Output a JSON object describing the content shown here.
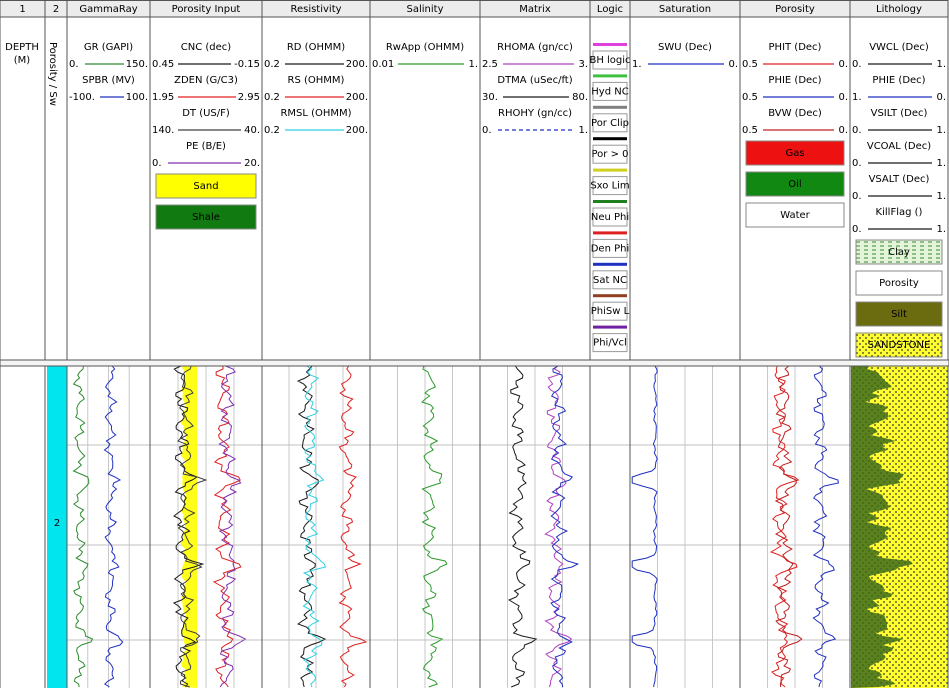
{
  "header_row": [
    "1",
    "2",
    "GammaRay",
    "Porosity Input",
    "Resistivity",
    "Salinity",
    "Matrix",
    "Logic",
    "Saturation",
    "Porosity",
    "Lithology"
  ],
  "depth": {
    "title": "DEPTH",
    "unit": "(M)"
  },
  "track2": {
    "label": "Porosity / Sw",
    "marker": "2"
  },
  "tracks": [
    {
      "curves": [
        {
          "name": "GR (GAPI)",
          "left": "0.",
          "right": "150.",
          "color": "#2e8b2e"
        },
        {
          "name": "SPBR (MV)",
          "left": "-100.",
          "right": "100.",
          "color": "#2030c0"
        }
      ]
    },
    {
      "curves": [
        {
          "name": "CNC (dec)",
          "left": "0.45",
          "right": "-0.15",
          "color": "#1a1a1a"
        },
        {
          "name": "ZDEN (G/C3)",
          "left": "1.95",
          "right": "2.95",
          "color": "#e02020"
        },
        {
          "name": "DT (US/F)",
          "left": "140.",
          "right": "40.",
          "color": "#404040"
        },
        {
          "name": "PE (B/E)",
          "left": "0.",
          "right": "20.",
          "color": "#8030b0"
        }
      ],
      "legend": [
        {
          "label": "Sand",
          "color": "#ffff00",
          "text": "#000000"
        },
        {
          "label": "Shale",
          "color": "#117a11",
          "text": "#ffffff"
        }
      ]
    },
    {
      "curves": [
        {
          "name": "RD (OHMM)",
          "left": "0.2",
          "right": "200.",
          "color": "#1a1a1a"
        },
        {
          "name": "RS (OHMM)",
          "left": "0.2",
          "right": "200.",
          "color": "#e02020"
        },
        {
          "name": "RMSL (OHMM)",
          "left": "0.2",
          "right": "200.",
          "color": "#30d0e0"
        }
      ]
    },
    {
      "curves": [
        {
          "name": "RwApp (OHMM)",
          "left": "0.01",
          "right": "1.",
          "color": "#2e9b2e"
        }
      ]
    },
    {
      "curves": [
        {
          "name": "RHOMA (gn/cc)",
          "left": "2.5",
          "right": "3.",
          "color": "#b040c0"
        },
        {
          "name": "DTMA (uSec/ft)",
          "left": "30.",
          "right": "80.",
          "color": "#1a1a1a"
        },
        {
          "name": "RHOHY (gn/cc)",
          "left": "0.",
          "right": "1.",
          "color": "#2030c0"
        }
      ]
    },
    {
      "logic": [
        {
          "label": "BH logic",
          "color": "#e040e0"
        },
        {
          "label": "Hyd NC",
          "color": "#40c040"
        },
        {
          "label": "Por Clip",
          "color": "#808080"
        },
        {
          "label": "Por > 0",
          "color": "#000000"
        },
        {
          "label": "Sxo Lim",
          "color": "#d0d020"
        },
        {
          "label": "Neu Phi",
          "color": "#208020"
        },
        {
          "label": "Den Phi",
          "color": "#e02020"
        },
        {
          "label": "Sat NC",
          "color": "#2030c0"
        },
        {
          "label": "PhiSw L",
          "color": "#904020"
        },
        {
          "label": "Phi/Vcl",
          "color": "#7020a0"
        }
      ]
    },
    {
      "curves": [
        {
          "name": "SWU (Dec)",
          "left": "1.",
          "right": "0.",
          "color": "#2030c0"
        }
      ]
    },
    {
      "curves": [
        {
          "name": "PHIT (Dec)",
          "left": "0.5",
          "right": "0.",
          "color": "#e02020"
        },
        {
          "name": "PHIE (Dec)",
          "left": "0.5",
          "right": "0.",
          "color": "#2030c0"
        },
        {
          "name": "BVW (Dec)",
          "left": "0.5",
          "right": "0.",
          "color": "#c02020"
        }
      ],
      "legend": [
        {
          "label": "Gas",
          "color": "#ee1111",
          "text": "#ffffff"
        },
        {
          "label": "Oil",
          "color": "#118811",
          "text": "#ffffff"
        },
        {
          "label": "Water",
          "color": "#ffffff",
          "text": "#000000"
        }
      ]
    },
    {
      "curves": [
        {
          "name": "VWCL (Dec)",
          "left": "0.",
          "right": "1.",
          "color": "#1a1a1a"
        },
        {
          "name": "PHIE (Dec)",
          "left": "1.",
          "right": "0.",
          "color": "#2030c0"
        },
        {
          "name": "VSILT (Dec)",
          "left": "0.",
          "right": "1.",
          "color": "#1a1a1a"
        },
        {
          "name": "VCOAL (Dec)",
          "left": "0.",
          "right": "1.",
          "color": "#1a1a1a"
        },
        {
          "name": "VSALT (Dec)",
          "left": "0.",
          "right": "1.",
          "color": "#1a1a1a"
        },
        {
          "name": "KillFlag ()",
          "left": "0.",
          "right": "1.",
          "color": "#1a1a1a"
        }
      ],
      "legend": [
        {
          "label": "Clay",
          "color": "#e4f4d8",
          "text": "#000000"
        },
        {
          "label": "Porosity",
          "color": "#ffffff",
          "text": "#000000"
        },
        {
          "label": "Silt",
          "color": "#6b6b10",
          "text": "#ffffff"
        },
        {
          "label": "SANDSTONE",
          "color": "#ffff30",
          "text": "#000000"
        }
      ]
    }
  ]
}
